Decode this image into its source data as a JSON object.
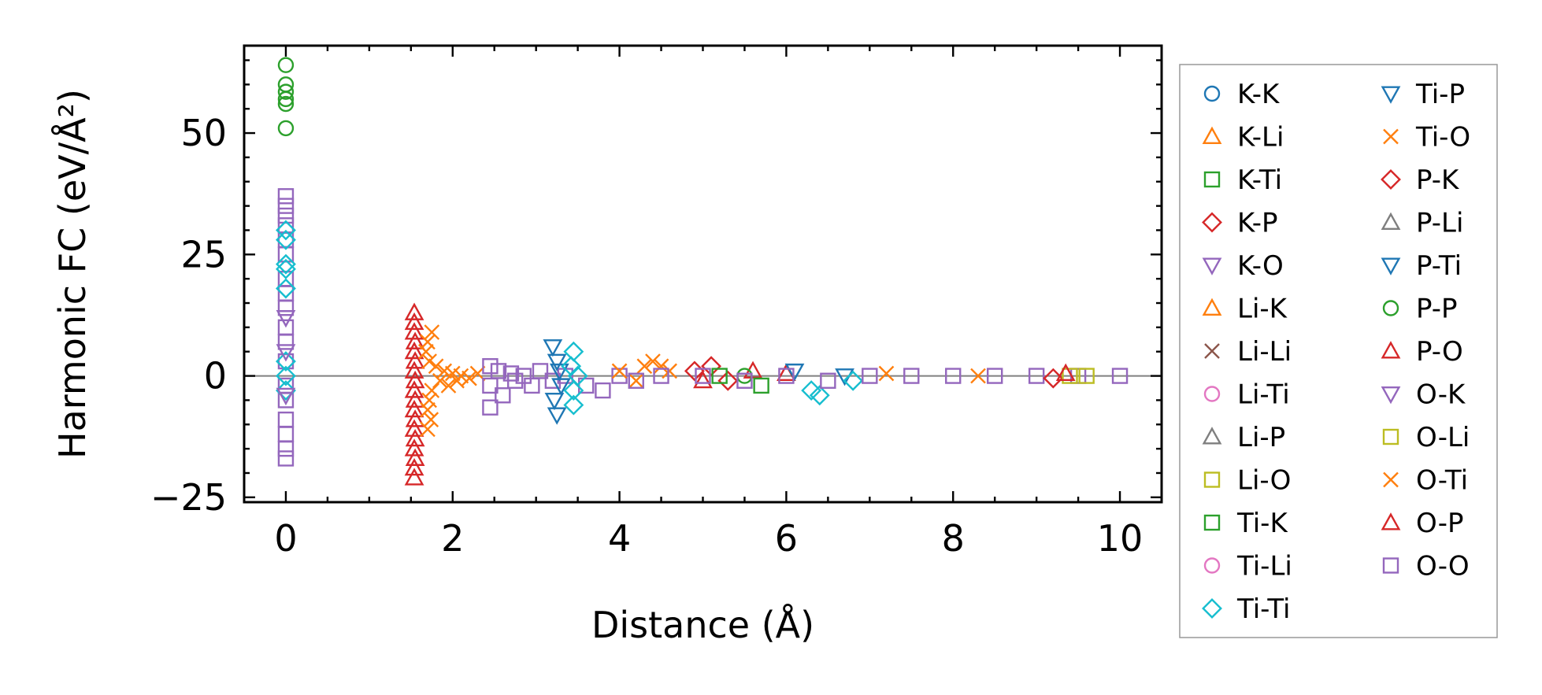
{
  "chart_data": {
    "type": "scatter",
    "title": "",
    "xlabel": "Distance (Å)",
    "ylabel": "Harmonic FC (eV/Å²)",
    "xlim": [
      -0.5,
      10.5
    ],
    "ylim": [
      -26,
      68
    ],
    "xticks": [
      0,
      2,
      4,
      6,
      8,
      10
    ],
    "yticks": [
      -25,
      0,
      25,
      50
    ],
    "xtick_labels": [
      "0",
      "2",
      "4",
      "6",
      "8",
      "10"
    ],
    "ytick_labels": [
      "−25",
      "0",
      "25",
      "50"
    ],
    "zero_line": true,
    "legend_position": "outside-right",
    "series": [
      {
        "name": "K-K",
        "marker": "circle",
        "color": "#1f77b4"
      },
      {
        "name": "K-Li",
        "marker": "triangle",
        "color": "#ff7f0e"
      },
      {
        "name": "K-Ti",
        "marker": "square",
        "color": "#2ca02c"
      },
      {
        "name": "K-P",
        "marker": "diamond",
        "color": "#d62728"
      },
      {
        "name": "K-O",
        "marker": "tri-down",
        "color": "#9467bd"
      },
      {
        "name": "Li-K",
        "marker": "triangle",
        "color": "#ff7f0e"
      },
      {
        "name": "Li-Li",
        "marker": "x",
        "color": "#8c564b"
      },
      {
        "name": "Li-Ti",
        "marker": "circle",
        "color": "#e377c2"
      },
      {
        "name": "Li-P",
        "marker": "triangle",
        "color": "#7f7f7f"
      },
      {
        "name": "Li-O",
        "marker": "square",
        "color": "#bcbd22"
      },
      {
        "name": "Ti-K",
        "marker": "square",
        "color": "#2ca02c"
      },
      {
        "name": "Ti-Li",
        "marker": "circle",
        "color": "#e377c2"
      },
      {
        "name": "Ti-Ti",
        "marker": "diamond",
        "color": "#17becf"
      },
      {
        "name": "Ti-P",
        "marker": "tri-down",
        "color": "#1f77b4"
      },
      {
        "name": "Ti-O",
        "marker": "x",
        "color": "#ff7f0e"
      },
      {
        "name": "P-K",
        "marker": "diamond",
        "color": "#d62728"
      },
      {
        "name": "P-Li",
        "marker": "triangle",
        "color": "#7f7f7f"
      },
      {
        "name": "P-Ti",
        "marker": "tri-down",
        "color": "#1f77b4"
      },
      {
        "name": "P-P",
        "marker": "circle",
        "color": "#2ca02c"
      },
      {
        "name": "P-O",
        "marker": "triangle",
        "color": "#d62728"
      },
      {
        "name": "O-K",
        "marker": "tri-down",
        "color": "#9467bd"
      },
      {
        "name": "O-Li",
        "marker": "square",
        "color": "#bcbd22"
      },
      {
        "name": "O-Ti",
        "marker": "x",
        "color": "#ff7f0e"
      },
      {
        "name": "O-P",
        "marker": "triangle",
        "color": "#d62728"
      },
      {
        "name": "O-O",
        "marker": "square",
        "color": "#9467bd"
      }
    ],
    "points": [
      {
        "s": "P-P",
        "x": 0,
        "y": 64
      },
      {
        "s": "P-P",
        "x": 0,
        "y": 60
      },
      {
        "s": "P-P",
        "x": 0,
        "y": 58.5
      },
      {
        "s": "P-P",
        "x": 0,
        "y": 57
      },
      {
        "s": "P-P",
        "x": 0,
        "y": 56
      },
      {
        "s": "P-P",
        "x": 0,
        "y": 51
      },
      {
        "s": "O-O",
        "x": 0,
        "y": 37
      },
      {
        "s": "O-O",
        "x": 0,
        "y": 35
      },
      {
        "s": "O-O",
        "x": 0,
        "y": 33
      },
      {
        "s": "O-O",
        "x": 0,
        "y": 31
      },
      {
        "s": "O-O",
        "x": 0,
        "y": 28
      },
      {
        "s": "O-O",
        "x": 0,
        "y": 25
      },
      {
        "s": "O-O",
        "x": 0,
        "y": 20
      },
      {
        "s": "O-O",
        "x": 0,
        "y": 17
      },
      {
        "s": "O-O",
        "x": 0,
        "y": 14
      },
      {
        "s": "O-O",
        "x": 0,
        "y": 10
      },
      {
        "s": "O-O",
        "x": 0,
        "y": 7
      },
      {
        "s": "O-O",
        "x": 0,
        "y": 3
      },
      {
        "s": "O-O",
        "x": 0,
        "y": -2
      },
      {
        "s": "O-O",
        "x": 0,
        "y": -5
      },
      {
        "s": "O-O",
        "x": 0,
        "y": -9
      },
      {
        "s": "O-O",
        "x": 0,
        "y": -12
      },
      {
        "s": "O-O",
        "x": 0,
        "y": -15
      },
      {
        "s": "O-O",
        "x": 0,
        "y": -17
      },
      {
        "s": "Ti-Ti",
        "x": 0,
        "y": 30
      },
      {
        "s": "Ti-Ti",
        "x": 0,
        "y": 28
      },
      {
        "s": "Ti-Ti",
        "x": 0,
        "y": 23
      },
      {
        "s": "Ti-Ti",
        "x": 0,
        "y": 22
      },
      {
        "s": "Ti-Ti",
        "x": 0,
        "y": 18
      },
      {
        "s": "Ti-Ti",
        "x": 0,
        "y": 3
      },
      {
        "s": "Ti-Ti",
        "x": 0,
        "y": 0
      },
      {
        "s": "Ti-Ti",
        "x": 0,
        "y": -3
      },
      {
        "s": "K-O",
        "x": 0,
        "y": 12
      },
      {
        "s": "K-O",
        "x": 0,
        "y": 5
      },
      {
        "s": "K-O",
        "x": 0,
        "y": -4
      },
      {
        "s": "P-O",
        "x": 1.54,
        "y": 13
      },
      {
        "s": "P-O",
        "x": 1.54,
        "y": 11
      },
      {
        "s": "P-O",
        "x": 1.54,
        "y": 9
      },
      {
        "s": "P-O",
        "x": 1.55,
        "y": 7
      },
      {
        "s": "P-O",
        "x": 1.54,
        "y": 5
      },
      {
        "s": "P-O",
        "x": 1.55,
        "y": 3
      },
      {
        "s": "P-O",
        "x": 1.54,
        "y": 1
      },
      {
        "s": "P-O",
        "x": 1.55,
        "y": -1
      },
      {
        "s": "P-O",
        "x": 1.54,
        "y": -3
      },
      {
        "s": "P-O",
        "x": 1.55,
        "y": -5
      },
      {
        "s": "P-O",
        "x": 1.54,
        "y": -7
      },
      {
        "s": "P-O",
        "x": 1.55,
        "y": -9
      },
      {
        "s": "P-O",
        "x": 1.54,
        "y": -11
      },
      {
        "s": "P-O",
        "x": 1.55,
        "y": -13
      },
      {
        "s": "P-O",
        "x": 1.54,
        "y": -15
      },
      {
        "s": "P-O",
        "x": 1.55,
        "y": -17
      },
      {
        "s": "P-O",
        "x": 1.54,
        "y": -19
      },
      {
        "s": "P-O",
        "x": 1.54,
        "y": -21
      },
      {
        "s": "O-Ti",
        "x": 1.75,
        "y": 9
      },
      {
        "s": "O-Ti",
        "x": 1.7,
        "y": 7
      },
      {
        "s": "O-Ti",
        "x": 1.68,
        "y": 5
      },
      {
        "s": "O-Ti",
        "x": 1.72,
        "y": 3
      },
      {
        "s": "O-Ti",
        "x": 1.8,
        "y": 2
      },
      {
        "s": "O-Ti",
        "x": 1.9,
        "y": 1
      },
      {
        "s": "O-Ti",
        "x": 2.0,
        "y": 0.5
      },
      {
        "s": "O-Ti",
        "x": 2.1,
        "y": 0
      },
      {
        "s": "O-Ti",
        "x": 2.2,
        "y": -0.5
      },
      {
        "s": "O-Ti",
        "x": 1.85,
        "y": -1
      },
      {
        "s": "O-Ti",
        "x": 1.75,
        "y": -3
      },
      {
        "s": "O-Ti",
        "x": 1.72,
        "y": -5
      },
      {
        "s": "O-Ti",
        "x": 1.7,
        "y": -7
      },
      {
        "s": "O-Ti",
        "x": 1.74,
        "y": -9
      },
      {
        "s": "O-Ti",
        "x": 1.7,
        "y": -11
      },
      {
        "s": "O-Ti",
        "x": 1.95,
        "y": -2
      },
      {
        "s": "O-Ti",
        "x": 2.05,
        "y": -1
      },
      {
        "s": "O-Ti",
        "x": 2.3,
        "y": 0.5
      },
      {
        "s": "O-O",
        "x": 2.45,
        "y": 2
      },
      {
        "s": "O-O",
        "x": 2.45,
        "y": -2
      },
      {
        "s": "O-O",
        "x": 2.45,
        "y": -6.5
      },
      {
        "s": "O-O",
        "x": 2.55,
        "y": 1
      },
      {
        "s": "O-O",
        "x": 2.6,
        "y": -4
      },
      {
        "s": "O-O",
        "x": 2.7,
        "y": 0.5
      },
      {
        "s": "O-O",
        "x": 2.75,
        "y": -1
      },
      {
        "s": "O-O",
        "x": 2.85,
        "y": 0
      },
      {
        "s": "O-O",
        "x": 2.95,
        "y": -2
      },
      {
        "s": "O-O",
        "x": 3.05,
        "y": 1
      },
      {
        "s": "O-O",
        "x": 3.2,
        "y": -1
      },
      {
        "s": "O-O",
        "x": 3.35,
        "y": 0
      },
      {
        "s": "O-O",
        "x": 3.6,
        "y": -2
      },
      {
        "s": "O-O",
        "x": 3.8,
        "y": -3
      },
      {
        "s": "O-O",
        "x": 4.0,
        "y": 0
      },
      {
        "s": "P-Ti",
        "x": 3.2,
        "y": 6
      },
      {
        "s": "P-Ti",
        "x": 3.25,
        "y": 3
      },
      {
        "s": "P-Ti",
        "x": 3.28,
        "y": 1
      },
      {
        "s": "P-Ti",
        "x": 3.3,
        "y": -2
      },
      {
        "s": "P-Ti",
        "x": 3.22,
        "y": -5
      },
      {
        "s": "P-Ti",
        "x": 3.25,
        "y": -8
      },
      {
        "s": "Ti-Ti",
        "x": 3.45,
        "y": 5
      },
      {
        "s": "Ti-Ti",
        "x": 3.42,
        "y": 2
      },
      {
        "s": "Ti-Ti",
        "x": 3.45,
        "y": -3
      },
      {
        "s": "Ti-Ti",
        "x": 3.45,
        "y": -6
      },
      {
        "s": "Ti-Ti",
        "x": 3.5,
        "y": 0
      },
      {
        "s": "Ti-O",
        "x": 4.3,
        "y": 2
      },
      {
        "s": "Ti-O",
        "x": 4.4,
        "y": 3
      },
      {
        "s": "Ti-O",
        "x": 4.5,
        "y": 2
      },
      {
        "s": "Ti-O",
        "x": 4.2,
        "y": -1
      },
      {
        "s": "Ti-O",
        "x": 4.6,
        "y": 1
      },
      {
        "s": "Ti-O",
        "x": 4.0,
        "y": 1
      },
      {
        "s": "K-P",
        "x": 4.9,
        "y": 1
      },
      {
        "s": "K-P",
        "x": 5.1,
        "y": 2
      },
      {
        "s": "K-P",
        "x": 5.3,
        "y": -1
      },
      {
        "s": "P-O",
        "x": 5.0,
        "y": -1
      },
      {
        "s": "P-O",
        "x": 5.6,
        "y": 1
      },
      {
        "s": "P-O",
        "x": 6.0,
        "y": 0.5
      },
      {
        "s": "K-Ti",
        "x": 5.2,
        "y": 0
      },
      {
        "s": "K-Ti",
        "x": 5.7,
        "y": -2
      },
      {
        "s": "P-P",
        "x": 5.5,
        "y": 0
      },
      {
        "s": "Ti-P",
        "x": 6.1,
        "y": 1
      },
      {
        "s": "Ti-P",
        "x": 6.7,
        "y": 0
      },
      {
        "s": "Ti-Ti",
        "x": 6.3,
        "y": -3
      },
      {
        "s": "Ti-Ti",
        "x": 6.4,
        "y": -4
      },
      {
        "s": "Ti-Ti",
        "x": 6.8,
        "y": -1
      },
      {
        "s": "O-O",
        "x": 4.2,
        "y": -1
      },
      {
        "s": "O-O",
        "x": 4.5,
        "y": 0
      },
      {
        "s": "O-O",
        "x": 5.0,
        "y": 0
      },
      {
        "s": "O-O",
        "x": 5.5,
        "y": -1
      },
      {
        "s": "O-O",
        "x": 6.0,
        "y": 0
      },
      {
        "s": "O-O",
        "x": 6.5,
        "y": -1
      },
      {
        "s": "O-O",
        "x": 7.0,
        "y": 0
      },
      {
        "s": "O-O",
        "x": 7.5,
        "y": 0
      },
      {
        "s": "O-O",
        "x": 8.0,
        "y": 0
      },
      {
        "s": "O-O",
        "x": 8.5,
        "y": 0
      },
      {
        "s": "O-O",
        "x": 9.0,
        "y": 0
      },
      {
        "s": "O-O",
        "x": 9.5,
        "y": 0
      },
      {
        "s": "O-O",
        "x": 10.0,
        "y": 0
      },
      {
        "s": "O-Ti",
        "x": 7.2,
        "y": 0.5
      },
      {
        "s": "O-Ti",
        "x": 8.3,
        "y": 0
      },
      {
        "s": "K-P",
        "x": 9.2,
        "y": -0.5
      },
      {
        "s": "O-Li",
        "x": 9.4,
        "y": 0
      },
      {
        "s": "Li-O",
        "x": 9.6,
        "y": 0
      },
      {
        "s": "O-P",
        "x": 9.35,
        "y": 0.5
      }
    ]
  }
}
